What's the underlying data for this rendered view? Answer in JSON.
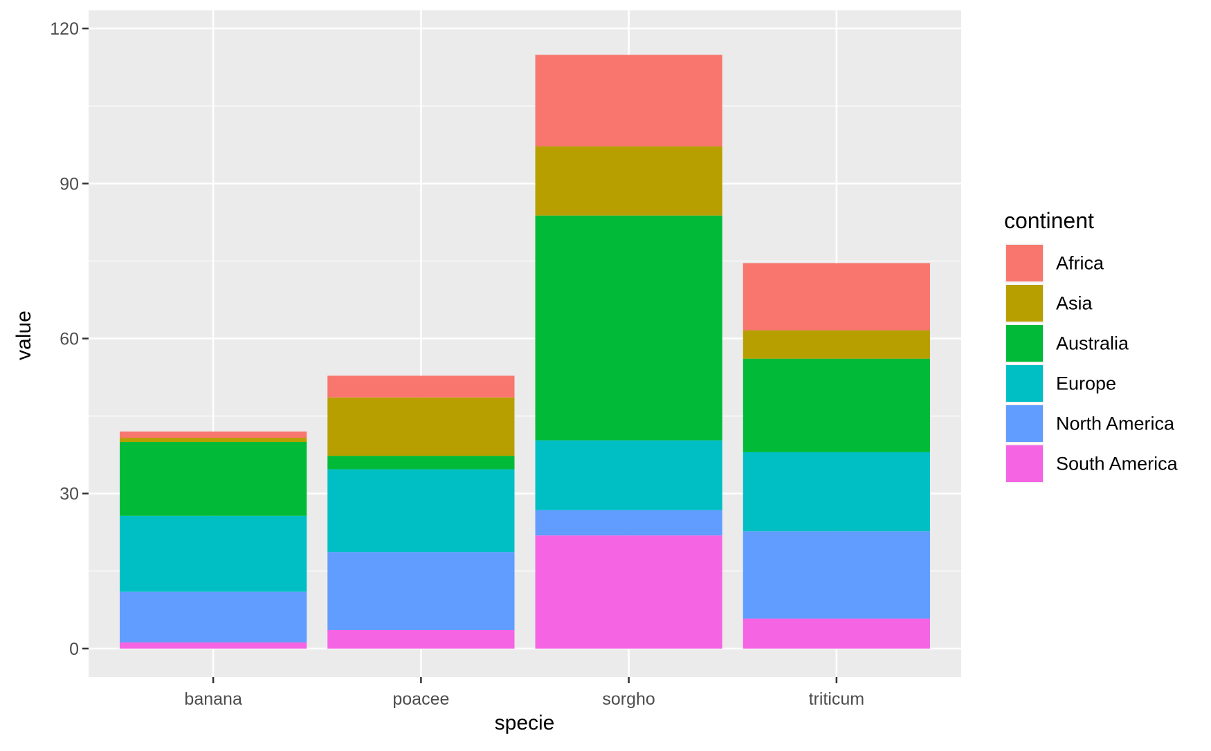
{
  "chart_data": {
    "type": "bar",
    "stacked": true,
    "categories": [
      "banana",
      "poacee",
      "sorgho",
      "triticum"
    ],
    "xlabel": "specie",
    "ylabel": "value",
    "ylim": [
      -5.5,
      123.5
    ],
    "yticks": [
      0,
      30,
      60,
      90,
      120
    ],
    "grid": true,
    "legend_position": "right",
    "legend": {
      "title": "continent",
      "entries": [
        "Africa",
        "Asia",
        "Australia",
        "Europe",
        "North America",
        "South America"
      ]
    },
    "series": [
      {
        "name": "Africa",
        "color": "#F8766D",
        "values": [
          1.2,
          4.2,
          17.7,
          13.0
        ]
      },
      {
        "name": "Asia",
        "color": "#B79F00",
        "values": [
          0.8,
          11.3,
          13.4,
          5.5
        ]
      },
      {
        "name": "Australia",
        "color": "#00BA38",
        "values": [
          14.3,
          2.6,
          43.5,
          18.1
        ]
      },
      {
        "name": "Europe",
        "color": "#00BFC4",
        "values": [
          14.7,
          16.0,
          13.5,
          15.3
        ]
      },
      {
        "name": "North America",
        "color": "#619CFF",
        "values": [
          9.8,
          15.1,
          4.9,
          16.9
        ]
      },
      {
        "name": "South America",
        "color": "#F564E3",
        "values": [
          1.2,
          3.6,
          21.9,
          5.8
        ]
      }
    ]
  }
}
